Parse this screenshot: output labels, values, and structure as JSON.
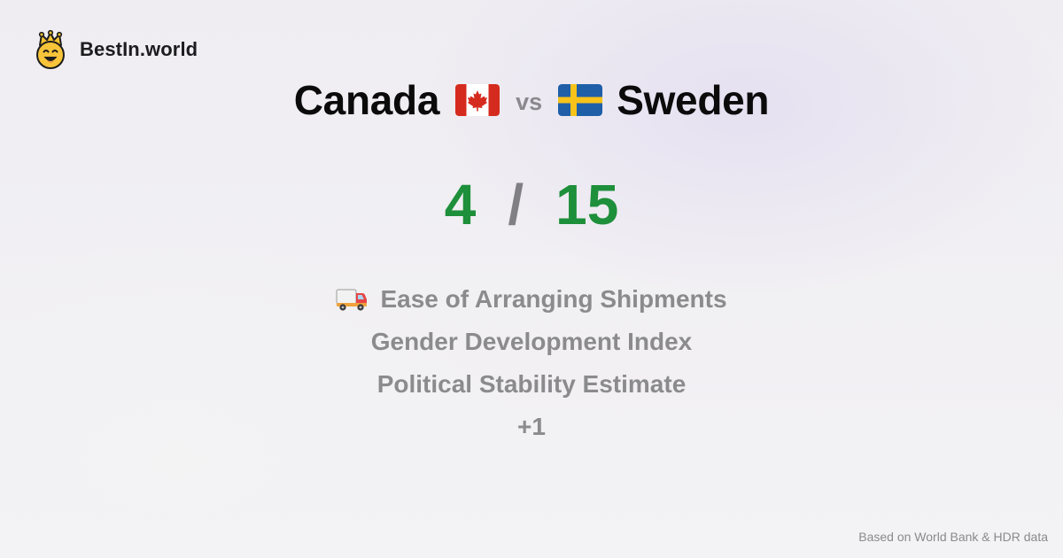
{
  "brand": {
    "name": "BestIn.world",
    "logo_icon": "crowned-smiley-icon"
  },
  "comparison": {
    "left": {
      "name": "Canada",
      "flag_icon": "canada-flag-icon"
    },
    "vs_label": "vs",
    "right": {
      "name": "Sweden",
      "flag_icon": "sweden-flag-icon"
    }
  },
  "score": {
    "left": "4",
    "separator": "/",
    "right": "15"
  },
  "metrics": [
    {
      "label": "Ease of Arranging Shipments",
      "icon": "truck-icon"
    },
    {
      "label": "Gender Development Index"
    },
    {
      "label": "Political Stability Estimate"
    },
    {
      "label": "+1"
    }
  ],
  "footer": {
    "source_note": "Based on World Bank & HDR data"
  },
  "colors": {
    "score_green": "#1e8f3a",
    "muted_gray": "#8b8b8e",
    "title_black": "#0b0b0c"
  }
}
